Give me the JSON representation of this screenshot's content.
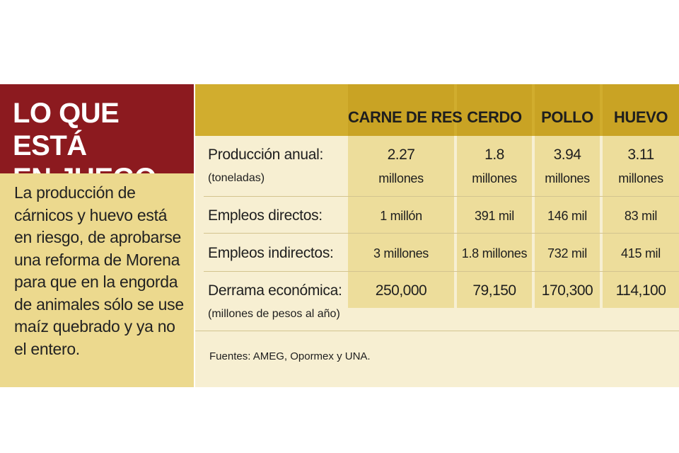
{
  "title": {
    "line1": "LO QUE ESTÁ",
    "line2": "EN JUEGO"
  },
  "description": [
    "La producción de",
    "cárnicos y huevo está",
    "en riesgo, de aprobarse",
    "una reforma de Morena",
    "para que en la engorda",
    "de animales sólo se use",
    "maíz quebrado y ya no",
    "el entero."
  ],
  "table": {
    "columns": [
      "CARNE DE RES",
      "CERDO",
      "POLLO",
      "HUEVO"
    ],
    "rows": [
      {
        "label": "Producción anual:",
        "sublabel": "(toneladas)",
        "values": [
          "2.27",
          "1.8",
          "3.94",
          "3.11"
        ],
        "values_unit": [
          "millones",
          "millones",
          "millones",
          "millones"
        ]
      },
      {
        "label": "Empleos directos:",
        "values": [
          "1 millón",
          "391 mil",
          "146 mil",
          "83 mil"
        ]
      },
      {
        "label": "Empleos indirectos:",
        "values": [
          "3 millones",
          "1.8 millones",
          "732 mil",
          "415 mil"
        ]
      },
      {
        "label": "Derrama económica:",
        "sublabel": "(millones de pesos al año)",
        "values": [
          "250,000",
          "79,150",
          "170,300",
          "114,100"
        ]
      }
    ]
  },
  "sources": "Fuentes: AMEG, Opormex y UNA.",
  "colors": {
    "title_bg": "#8c1a1f",
    "body_bg": "#ecd98e",
    "header_bg": "#d1ad2e",
    "table_bg": "#f7efd2",
    "column_bg": "#eddd9b"
  }
}
